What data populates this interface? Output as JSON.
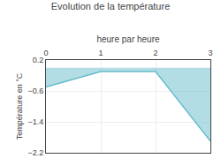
{
  "chart_data": {
    "type": "area",
    "title": "Evolution de la température",
    "xlabel": "heure par heure",
    "ylabel": "Température en °C",
    "x": [
      0,
      1,
      2,
      3
    ],
    "values": [
      -0.5,
      -0.1,
      -0.1,
      -1.9
    ],
    "color": "#66bbcc",
    "xlim": [
      0,
      3
    ],
    "xticks": [
      0,
      1,
      2,
      3
    ],
    "ylim": [
      -2.2,
      0.2
    ],
    "yticks": [
      0.2,
      -0.6,
      -1.4,
      -2.2
    ],
    "grid": true
  }
}
